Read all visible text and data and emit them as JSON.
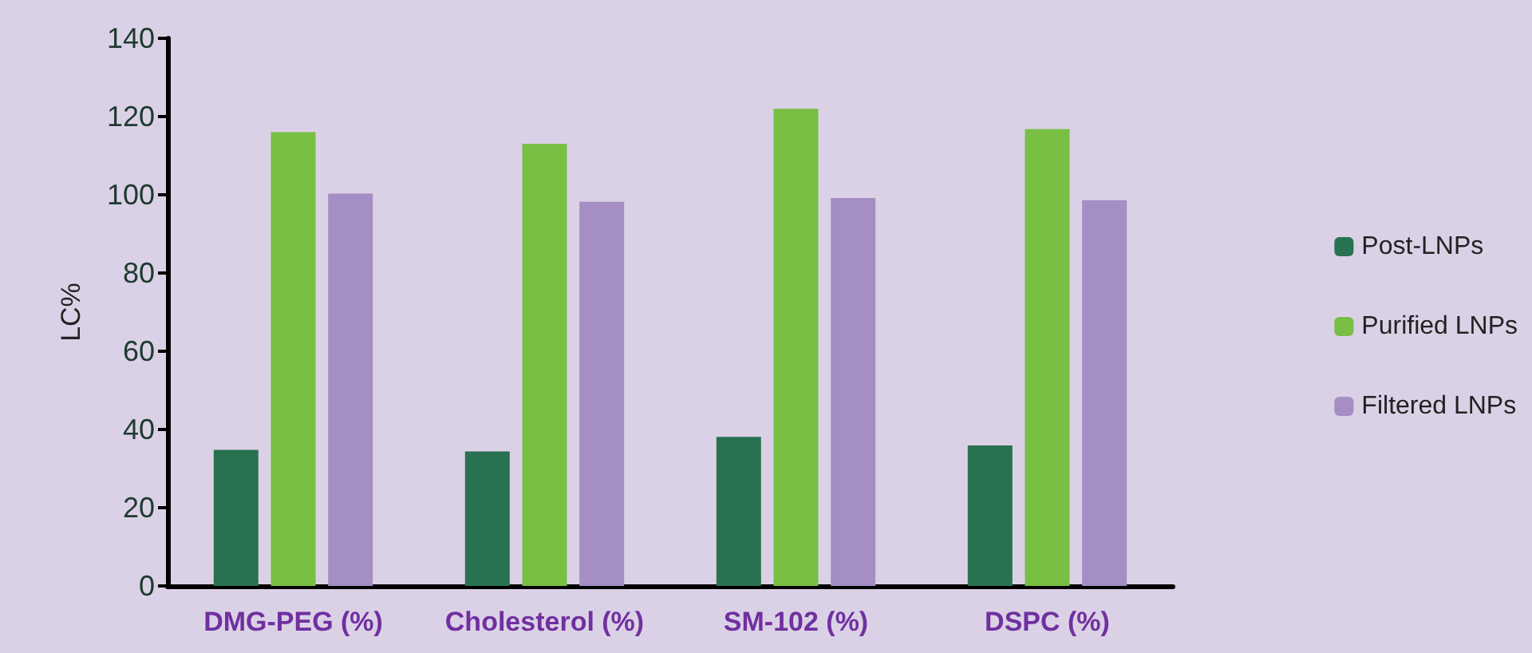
{
  "chart_data": {
    "type": "bar",
    "ylabel": "LC%",
    "categories": [
      "DMG-PEG (%)",
      "Cholesterol (%)",
      "SM-102 (%)",
      "DSPC (%)"
    ],
    "series": [
      {
        "name": "Post-LNPs",
        "color": "#287251",
        "values": [
          34.8,
          34.4,
          38.1,
          35.9
        ]
      },
      {
        "name": "Purified LNPs",
        "color": "#78bf44",
        "values": [
          116,
          113,
          122,
          116.8
        ]
      },
      {
        "name": "Filtered LNPs",
        "color": "#a58ec4",
        "values": [
          100.3,
          98.2,
          99.2,
          98.6
        ]
      }
    ],
    "ylim": [
      0,
      140
    ],
    "yticks": [
      0,
      20,
      40,
      60,
      80,
      100,
      120,
      140
    ],
    "grid": false,
    "legend": "right"
  }
}
